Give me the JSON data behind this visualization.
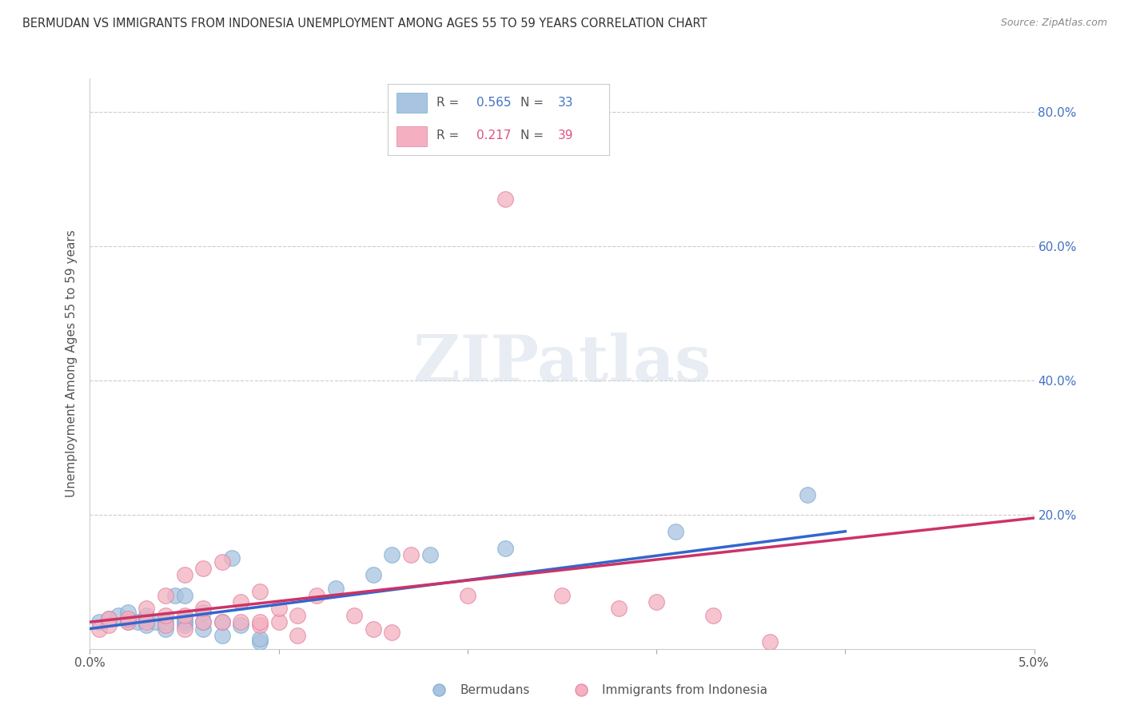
{
  "title": "BERMUDAN VS IMMIGRANTS FROM INDONESIA UNEMPLOYMENT AMONG AGES 55 TO 59 YEARS CORRELATION CHART",
  "source": "Source: ZipAtlas.com",
  "ylabel": "Unemployment Among Ages 55 to 59 years",
  "xlim": [
    0.0,
    0.05
  ],
  "ylim": [
    0.0,
    0.85
  ],
  "bermudans_color": "#a8c4e0",
  "bermudans_edge_color": "#7aaad0",
  "indonesia_color": "#f4b0c0",
  "indonesia_edge_color": "#e080a0",
  "trendline_bermudans_color": "#3366cc",
  "trendline_indonesia_color": "#cc3366",
  "legend_R_bermudans": "0.565",
  "legend_N_bermudans": "33",
  "legend_R_indonesia": "0.217",
  "legend_N_indonesia": "39",
  "legend_color_bermudans": "#4472c4",
  "legend_color_indonesia": "#e05080",
  "bermudans_x": [
    0.0005,
    0.001,
    0.0015,
    0.002,
    0.002,
    0.0025,
    0.003,
    0.003,
    0.003,
    0.0035,
    0.004,
    0.004,
    0.0045,
    0.005,
    0.005,
    0.005,
    0.005,
    0.006,
    0.006,
    0.006,
    0.007,
    0.007,
    0.0075,
    0.008,
    0.009,
    0.009,
    0.013,
    0.015,
    0.016,
    0.018,
    0.022,
    0.031,
    0.038
  ],
  "bermudans_y": [
    0.04,
    0.045,
    0.05,
    0.04,
    0.055,
    0.04,
    0.035,
    0.045,
    0.05,
    0.04,
    0.03,
    0.04,
    0.08,
    0.035,
    0.04,
    0.045,
    0.08,
    0.03,
    0.04,
    0.055,
    0.02,
    0.04,
    0.135,
    0.035,
    0.01,
    0.015,
    0.09,
    0.11,
    0.14,
    0.14,
    0.15,
    0.175,
    0.23
  ],
  "indonesia_x": [
    0.0005,
    0.001,
    0.001,
    0.002,
    0.002,
    0.003,
    0.003,
    0.004,
    0.004,
    0.004,
    0.005,
    0.005,
    0.005,
    0.006,
    0.006,
    0.006,
    0.007,
    0.007,
    0.008,
    0.008,
    0.009,
    0.009,
    0.009,
    0.01,
    0.01,
    0.011,
    0.011,
    0.012,
    0.014,
    0.015,
    0.016,
    0.017,
    0.02,
    0.022,
    0.025,
    0.028,
    0.03,
    0.033,
    0.036
  ],
  "indonesia_y": [
    0.03,
    0.035,
    0.045,
    0.04,
    0.045,
    0.04,
    0.06,
    0.035,
    0.05,
    0.08,
    0.03,
    0.05,
    0.11,
    0.04,
    0.06,
    0.12,
    0.04,
    0.13,
    0.04,
    0.07,
    0.035,
    0.04,
    0.085,
    0.04,
    0.06,
    0.02,
    0.05,
    0.08,
    0.05,
    0.03,
    0.025,
    0.14,
    0.08,
    0.67,
    0.08,
    0.06,
    0.07,
    0.05,
    0.01
  ],
  "trendline_b_x0": 0.0,
  "trendline_b_y0": 0.03,
  "trendline_b_x1": 0.04,
  "trendline_b_y1": 0.175,
  "trendline_i_x0": 0.0,
  "trendline_i_y0": 0.04,
  "trendline_i_x1": 0.05,
  "trendline_i_y1": 0.195
}
